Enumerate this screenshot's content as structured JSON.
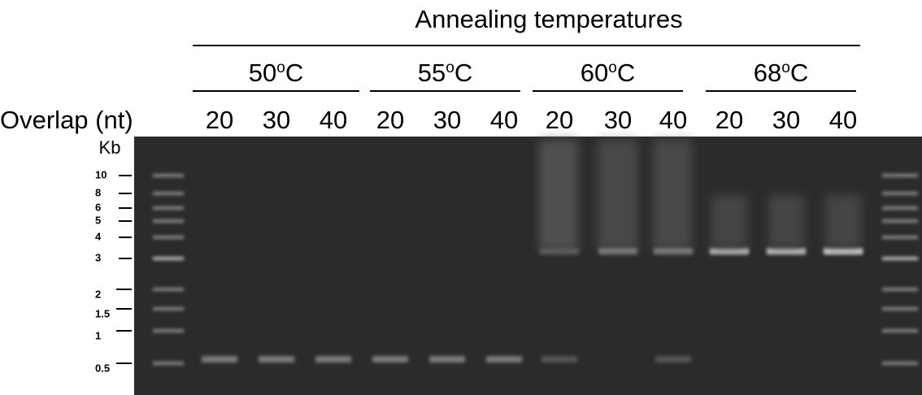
{
  "figure": {
    "title": "Annealing temperatures",
    "groups": [
      {
        "label": [
          "50",
          "o",
          "C"
        ],
        "lanes": [
          "20",
          "30",
          "40"
        ]
      },
      {
        "label": [
          "55",
          "o",
          "C"
        ],
        "lanes": [
          "20",
          "30",
          "40"
        ]
      },
      {
        "label": [
          "60",
          "o",
          "C"
        ],
        "lanes": [
          "20",
          "30",
          "40"
        ]
      },
      {
        "label": [
          "68",
          "o",
          "C"
        ],
        "lanes": [
          "20",
          "30",
          "40"
        ]
      }
    ],
    "row_label": "Overlap (nt)",
    "ladder_unit": "Kb",
    "ladder": [
      "10",
      "8",
      "6",
      "5",
      "4",
      "3",
      "2",
      "1.5",
      "1",
      "0.5"
    ]
  }
}
